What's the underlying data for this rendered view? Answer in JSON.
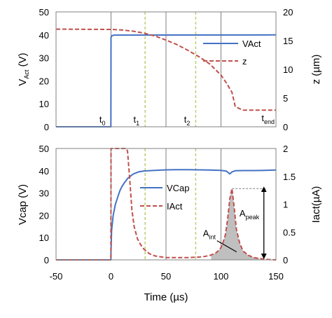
{
  "chart_data": [
    {
      "type": "line",
      "panel": "top",
      "xlim": [
        -50,
        150
      ],
      "ylim": [
        0,
        50
      ],
      "y2lim": [
        0,
        20
      ],
      "x_ticks": [
        -50,
        0,
        50,
        100,
        150
      ],
      "y_ticks": [
        0,
        10,
        20,
        30,
        40,
        50
      ],
      "y2_ticks": [
        0,
        5,
        10,
        15,
        20
      ],
      "ylabel": {
        "main": "V",
        "sub": "Act",
        "unit": " (V)"
      },
      "y2label": "z (µm)",
      "grid": "vertical",
      "legend_position": "top-right",
      "series": [
        {
          "name": "VAct",
          "axis": "left",
          "color": "#4472c4",
          "dash": "solid",
          "x": [
            -50,
            -0.1,
            0,
            1,
            3,
            150
          ],
          "y": [
            0,
            0,
            39,
            39.7,
            39.9,
            40
          ]
        },
        {
          "name": "z",
          "axis": "right",
          "color": "#c0504d",
          "dash": "dashed",
          "x": [
            -50,
            0,
            10,
            20,
            30,
            40,
            50,
            60,
            70,
            80,
            90,
            100,
            105,
            110,
            113,
            120,
            130,
            140,
            150
          ],
          "y": [
            17,
            16.95,
            16.85,
            16.65,
            16.3,
            15.8,
            15.1,
            14.3,
            13.3,
            12.2,
            10.9,
            9.0,
            7.6,
            6.0,
            3.5,
            2.9,
            2.9,
            2.9,
            2.9
          ]
        }
      ],
      "markers": [
        {
          "main": "t",
          "sub": "0",
          "x": 0
        },
        {
          "main": "t",
          "sub": "1",
          "x": 31
        },
        {
          "main": "t",
          "sub": "2",
          "x": 77
        },
        {
          "main": "t",
          "sub": "end",
          "x": 113
        }
      ]
    },
    {
      "type": "line",
      "panel": "bottom",
      "xlim": [
        -50,
        150
      ],
      "ylim": [
        0,
        50
      ],
      "y2lim": [
        0,
        2
      ],
      "x_ticks": [
        -50,
        0,
        50,
        100,
        150
      ],
      "y_ticks": [
        0,
        10,
        20,
        30,
        40,
        50
      ],
      "y2_ticks": [
        0,
        0.5,
        1,
        1.5,
        2
      ],
      "xlabel": "Time (µs)",
      "ylabel": "Vcap (V)",
      "y2label": "Iact(µA)",
      "grid": "vertical",
      "legend_position": "center",
      "series": [
        {
          "name": "VCap",
          "axis": "left",
          "color": "#4472c4",
          "dash": "solid",
          "x": [
            -50,
            -0.1,
            0,
            0.5,
            2,
            4,
            6,
            8,
            10,
            12,
            15,
            20,
            25,
            30,
            40,
            50,
            60,
            70,
            80,
            90,
            100,
            105,
            108,
            110,
            113,
            120,
            130,
            140,
            150
          ],
          "y": [
            0,
            0,
            4,
            13,
            20,
            25,
            28,
            31,
            33,
            34.5,
            36.5,
            38.5,
            39.5,
            39.9,
            40.2,
            40.4,
            40.5,
            40.5,
            40.4,
            40.3,
            40.2,
            39.8,
            38.6,
            39.5,
            40.0,
            40.1,
            40.1,
            40.2,
            40.3
          ]
        },
        {
          "name": "IAct",
          "axis": "right",
          "color": "#c0504d",
          "dash": "dashed",
          "x": [
            -50,
            -0.1,
            0,
            10,
            14,
            15,
            17,
            19,
            21,
            24,
            27,
            30,
            35,
            40,
            50,
            60,
            70,
            80,
            85,
            90,
            95,
            98,
            100,
            102,
            104,
            106,
            108,
            110,
            112,
            114,
            117,
            120,
            125,
            130,
            140,
            150
          ],
          "y": [
            0,
            0,
            2.0,
            2.0,
            2.0,
            1.95,
            1.45,
            0.9,
            0.6,
            0.38,
            0.27,
            0.19,
            0.11,
            0.07,
            0.04,
            0.04,
            0.04,
            0.05,
            0.06,
            0.08,
            0.12,
            0.17,
            0.22,
            0.32,
            0.45,
            0.72,
            1.1,
            1.28,
            0.95,
            0.55,
            0.3,
            0.16,
            0.08,
            0.04,
            0.01,
            0
          ]
        }
      ],
      "fill_area": {
        "series": "IAct",
        "x_start": 91,
        "x_end": 135,
        "color": "#bfbfbf"
      },
      "annotations": [
        {
          "id": "a-int",
          "main": "A",
          "sub": "int",
          "x": 90,
          "y2": 0.42
        },
        {
          "id": "a-peak",
          "main": "A",
          "sub": "peak",
          "x": 120,
          "y2": 0.72
        }
      ],
      "peak_marker": {
        "x": 110,
        "y2": 1.28,
        "arrow_x": 139
      }
    }
  ]
}
